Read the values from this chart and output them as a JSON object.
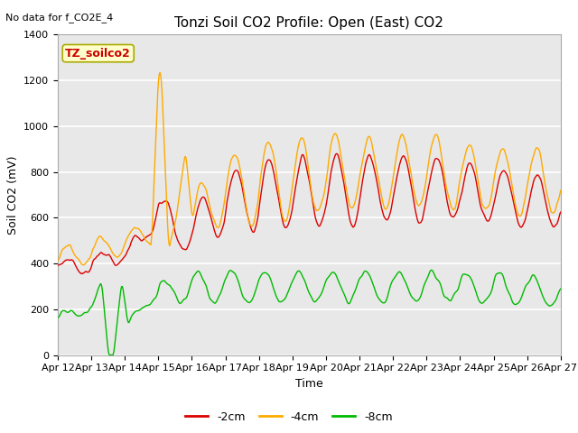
{
  "title": "Tonzi Soil CO2 Profile: Open (East) CO2",
  "no_data_text": "No data for f_CO2E_4",
  "ylabel": "Soil CO2 (mV)",
  "xlabel": "Time",
  "dataset_label": "TZ_soilco2",
  "legend_labels": [
    "-2cm",
    "-4cm",
    "-8cm"
  ],
  "legend_colors": [
    "#dd0000",
    "#ffaa00",
    "#00bb00"
  ],
  "line_colors": [
    "#dd0000",
    "#ffaa00",
    "#00bb00"
  ],
  "xticklabels": [
    "Apr 12",
    "Apr 13",
    "Apr 14",
    "Apr 15",
    "Apr 16",
    "Apr 17",
    "Apr 18",
    "Apr 19",
    "Apr 20",
    "Apr 21",
    "Apr 22",
    "Apr 23",
    "Apr 24",
    "Apr 25",
    "Apr 26",
    "Apr 27"
  ],
  "ylim": [
    0,
    1400
  ],
  "yticks": [
    0,
    200,
    400,
    600,
    800,
    1000,
    1200,
    1400
  ],
  "background_color": "#ffffff",
  "plot_bg_color": "#e8e8e8",
  "grid_color": "#ffffff",
  "title_fontsize": 11,
  "axis_fontsize": 9,
  "tick_fontsize": 8,
  "legend_fontsize": 9
}
